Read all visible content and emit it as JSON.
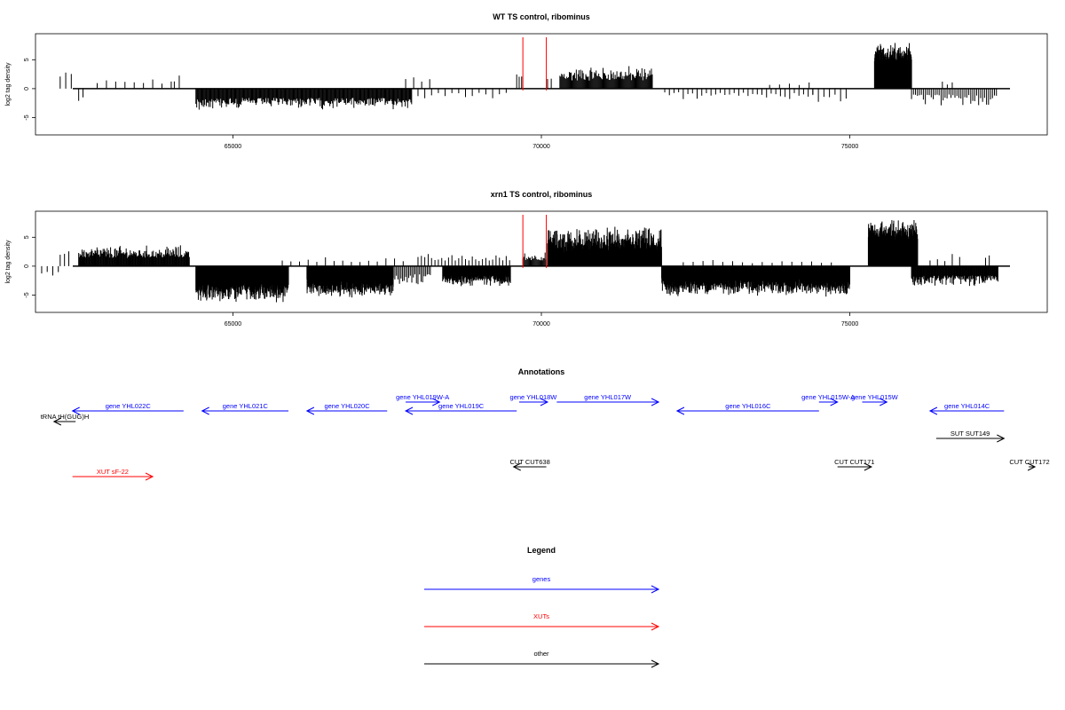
{
  "chart_data": [
    {
      "type": "bar",
      "title": "WT TS control, ribominus",
      "ylabel": "log2 tag density",
      "xlabel": "",
      "xlim": [
        61800,
        78200
      ],
      "ylim": [
        -8,
        9.5
      ],
      "x_ticks": [
        65000,
        70000,
        75000
      ],
      "y_ticks": [
        -5,
        0,
        5
      ],
      "grid": false,
      "markers": [
        69700,
        70080
      ],
      "series": [
        {
          "strand": "plus",
          "regions": [
            {
              "x0": 62200,
              "x1": 62400,
              "step": 90,
              "base": 1.2,
              "amp": 2.5
            },
            {
              "x0": 62800,
              "x1": 64000,
              "step": 150,
              "base": 0.8,
              "amp": 1.0
            },
            {
              "x0": 64050,
              "x1": 64200,
              "step": 80,
              "base": 1.0,
              "amp": 1.5
            },
            {
              "x0": 67800,
              "x1": 68200,
              "step": 130,
              "base": 1.0,
              "amp": 2.5
            },
            {
              "x0": 69600,
              "x1": 69700,
              "step": 40,
              "base": 1.5,
              "amp": 1.5
            },
            {
              "x0": 70100,
              "x1": 70200,
              "step": 60,
              "base": 1.0,
              "amp": 1.5
            },
            {
              "x0": 70300,
              "x1": 71800,
              "step": 14,
              "base": 1.4,
              "amp": 2.8
            },
            {
              "x0": 73700,
              "x1": 74400,
              "step": 160,
              "base": 0.6,
              "amp": 0.8
            },
            {
              "x0": 75400,
              "x1": 76000,
              "step": 4,
              "base": 4.5,
              "amp": 3.8
            },
            {
              "x0": 76500,
              "x1": 76700,
              "step": 80,
              "base": 0.6,
              "amp": 0.8
            }
          ]
        },
        {
          "strand": "minus",
          "regions": [
            {
              "x0": 62500,
              "x1": 62600,
              "step": 70,
              "base": 1.5,
              "amp": 1.5
            },
            {
              "x0": 64400,
              "x1": 67900,
              "step": 13,
              "base": 1.6,
              "amp": 2.1
            },
            {
              "x0": 68000,
              "x1": 69500,
              "step": 110,
              "base": 0.7,
              "amp": 1.2
            },
            {
              "x0": 72000,
              "x1": 74400,
              "step": 75,
              "base": 0.6,
              "amp": 1.5
            },
            {
              "x0": 74400,
              "x1": 75000,
              "step": 90,
              "base": 0.8,
              "amp": 1.8
            },
            {
              "x0": 76000,
              "x1": 77400,
              "step": 32,
              "base": 1.0,
              "amp": 2.2
            }
          ]
        }
      ]
    },
    {
      "type": "bar",
      "title": "xrn1 TS control, ribominus",
      "ylabel": "log2 tag density",
      "xlabel": "",
      "xlim": [
        61800,
        78200
      ],
      "ylim": [
        -8,
        9.5
      ],
      "x_ticks": [
        65000,
        70000,
        75000
      ],
      "y_ticks": [
        -5,
        0,
        5
      ],
      "grid": false,
      "markers": [
        69700,
        70080
      ],
      "series": [
        {
          "strand": "plus",
          "regions": [
            {
              "x0": 62200,
              "x1": 62400,
              "step": 70,
              "base": 1.0,
              "amp": 4.0
            },
            {
              "x0": 62500,
              "x1": 64300,
              "step": 11,
              "base": 1.4,
              "amp": 2.4
            },
            {
              "x0": 65800,
              "x1": 67800,
              "step": 140,
              "base": 0.7,
              "amp": 1.0
            },
            {
              "x0": 68000,
              "x1": 69500,
              "step": 55,
              "base": 0.8,
              "amp": 1.5
            },
            {
              "x0": 69700,
              "x1": 70080,
              "step": 15,
              "base": 1.0,
              "amp": 1.5
            },
            {
              "x0": 70100,
              "x1": 71950,
              "step": 4,
              "base": 2.2,
              "amp": 4.8
            },
            {
              "x0": 72300,
              "x1": 74700,
              "step": 160,
              "base": 0.5,
              "amp": 0.6
            },
            {
              "x0": 75300,
              "x1": 76100,
              "step": 3,
              "base": 4.2,
              "amp": 4.3
            },
            {
              "x0": 76300,
              "x1": 76800,
              "step": 120,
              "base": 0.8,
              "amp": 1.5
            },
            {
              "x0": 77200,
              "x1": 77300,
              "step": 60,
              "base": 1.0,
              "amp": 1.0
            }
          ]
        },
        {
          "strand": "minus",
          "regions": [
            {
              "x0": 61900,
              "x1": 62200,
              "step": 90,
              "base": 1.0,
              "amp": 1.0
            },
            {
              "x0": 64400,
              "x1": 65900,
              "step": 3,
              "base": 2.6,
              "amp": 3.8
            },
            {
              "x0": 66200,
              "x1": 67600,
              "step": 3,
              "base": 2.3,
              "amp": 3.3
            },
            {
              "x0": 67600,
              "x1": 68200,
              "step": 25,
              "base": 1.4,
              "amp": 2.0
            },
            {
              "x0": 68400,
              "x1": 69500,
              "step": 6,
              "base": 1.6,
              "amp": 2.2
            },
            {
              "x0": 71950,
              "x1": 75000,
              "step": 3,
              "base": 2.1,
              "amp": 3.2
            },
            {
              "x0": 76000,
              "x1": 77400,
              "step": 10,
              "base": 1.6,
              "amp": 2.0
            }
          ]
        }
      ]
    }
  ],
  "annotations": {
    "title": "Annotations",
    "xlim": [
      61800,
      78200
    ],
    "features": [
      {
        "label": "tRNA tH(GUG)H",
        "start": 62450,
        "end": 62100,
        "row": 1,
        "color": "#000000"
      },
      {
        "label": "gene YHL022C",
        "start": 64200,
        "end": 62400,
        "row": 0,
        "color": "#0000ff"
      },
      {
        "label": "gene YHL021C",
        "start": 65900,
        "end": 64500,
        "row": 0,
        "color": "#0000ff"
      },
      {
        "label": "gene YHL020C",
        "start": 67500,
        "end": 66200,
        "row": 0,
        "color": "#0000ff"
      },
      {
        "label": "gene YHL019W-A",
        "start": 67800,
        "end": 68350,
        "row": -1,
        "color": "#0000ff"
      },
      {
        "label": "gene YHL019C",
        "start": 69600,
        "end": 67800,
        "row": 0,
        "color": "#0000ff"
      },
      {
        "label": "gene YHL018W",
        "start": 69640,
        "end": 70100,
        "row": -1,
        "color": "#0000ff"
      },
      {
        "label": "gene YHL017W",
        "start": 70250,
        "end": 71900,
        "row": -1,
        "color": "#0000ff"
      },
      {
        "label": "gene YHL016C",
        "start": 74500,
        "end": 72200,
        "row": 0,
        "color": "#0000ff"
      },
      {
        "label": "gene YHL015W-A",
        "start": 74500,
        "end": 74800,
        "row": -1,
        "color": "#0000ff"
      },
      {
        "label": "gene YHL015W",
        "start": 75200,
        "end": 75600,
        "row": -1,
        "color": "#0000ff"
      },
      {
        "label": "gene YHL014C",
        "start": 77500,
        "end": 76300,
        "row": 0,
        "color": "#0000ff"
      },
      {
        "label": "SUT SUT149",
        "start": 76400,
        "end": 77500,
        "row": 2,
        "color": "#000000"
      },
      {
        "label": "CUT CUT638",
        "start": 70080,
        "end": 69550,
        "row": 3,
        "color": "#000000"
      },
      {
        "label": "CUT CUT171",
        "start": 74800,
        "end": 75350,
        "row": 3,
        "color": "#000000"
      },
      {
        "label": "CUT CUT172",
        "start": 77900,
        "end": 78000,
        "row": 3,
        "color": "#000000"
      },
      {
        "label": "XUT sF-22",
        "start": 62400,
        "end": 63700,
        "row": 4,
        "color": "#ff0000"
      }
    ]
  },
  "legend": {
    "title": "Legend",
    "items": [
      {
        "label": "genes",
        "color": "#0000ff"
      },
      {
        "label": "XUTs",
        "color": "#ff0000"
      },
      {
        "label": "other",
        "color": "#000000"
      }
    ]
  }
}
